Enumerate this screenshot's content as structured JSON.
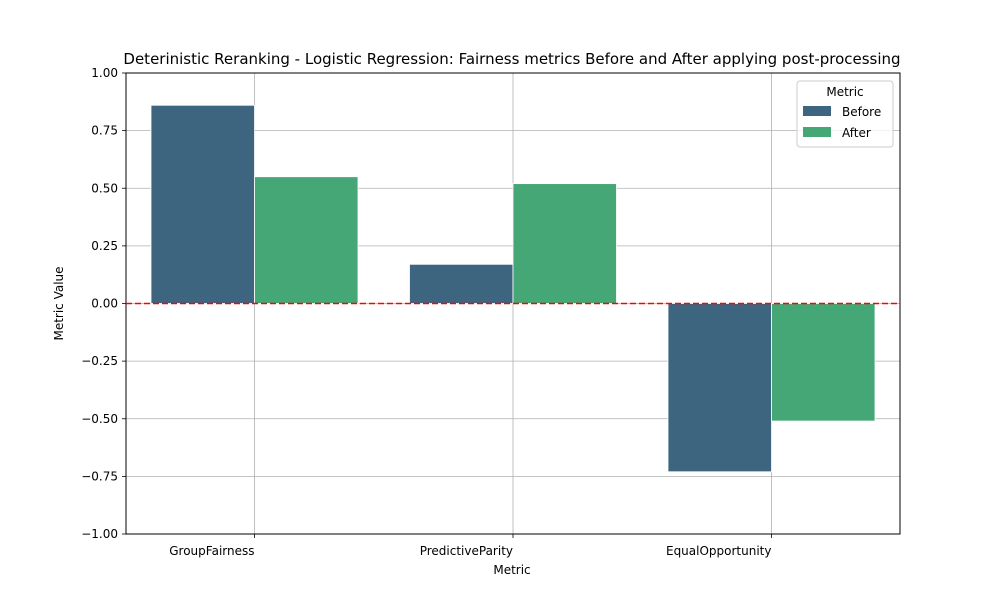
{
  "chart_data": {
    "type": "bar",
    "title": "Deterinistic Reranking - Logistic Regression: Fairness metrics Before and After applying post-processing",
    "xlabel": "Metric",
    "ylabel": "Metric Value",
    "categories": [
      "GroupFairness",
      "PredictiveParity",
      "EqualOpportunity"
    ],
    "series": [
      {
        "name": "Before",
        "values": [
          0.86,
          0.17,
          -0.73
        ],
        "color": "#3e6580"
      },
      {
        "name": "After",
        "values": [
          0.55,
          0.52,
          -0.51
        ],
        "color": "#45a776"
      }
    ],
    "ylim": [
      -1.0,
      1.0
    ],
    "yticks": [
      1.0,
      0.75,
      0.5,
      0.25,
      0.0,
      -0.25,
      -0.5,
      -0.75,
      -1.0
    ],
    "ytick_labels": [
      "1.00",
      "0.75",
      "0.50",
      "0.25",
      "0.00",
      "−0.25",
      "−0.50",
      "−0.75",
      "−1.00"
    ],
    "grid": true,
    "reference_line": {
      "y": 0,
      "color": "#ff0000",
      "style": "dashed"
    },
    "legend": {
      "title": "Metric",
      "placement": "top-right"
    }
  }
}
